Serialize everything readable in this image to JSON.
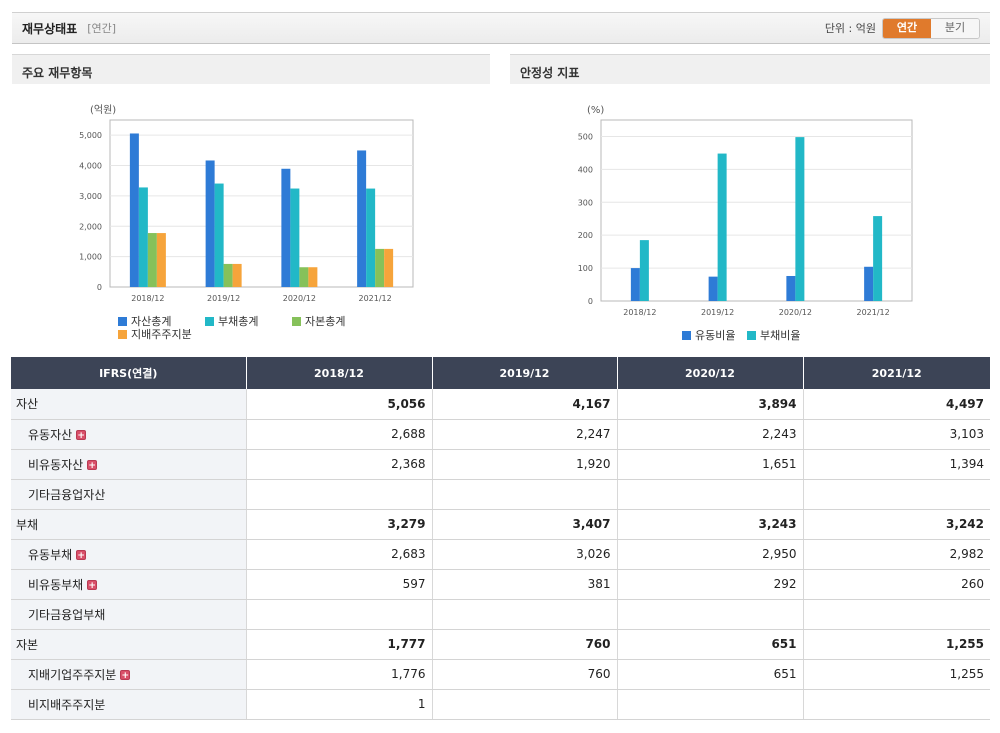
{
  "header": {
    "title": "재무상태표",
    "subtitle": "[연간]",
    "unit_label": "단위 : 억원",
    "toggle_annual": "연간",
    "toggle_quarter": "분기"
  },
  "colors": {
    "blue": "#2e7bd6",
    "cyan": "#22b8c7",
    "green": "#86c15a",
    "orange": "#f6a43b"
  },
  "chart_data": [
    {
      "type": "bar",
      "panel_title": "주요 재무항목",
      "unit": "(억원)",
      "categories": [
        "2018/12",
        "2019/12",
        "2020/12",
        "2021/12"
      ],
      "ylim": [
        0,
        5500
      ],
      "yticks": [
        0,
        1000,
        2000,
        3000,
        4000,
        5000
      ],
      "ytick_labels": [
        "0",
        "1,000",
        "2,000",
        "3,000",
        "4,000",
        "5,000"
      ],
      "grid": true,
      "legend_position": "bottom",
      "series": [
        {
          "name": "자산총계",
          "color": "#2e7bd6",
          "values": [
            5056,
            4167,
            3894,
            4497
          ]
        },
        {
          "name": "부채총계",
          "color": "#22b8c7",
          "values": [
            3279,
            3407,
            3243,
            3242
          ]
        },
        {
          "name": "자본총계",
          "color": "#86c15a",
          "values": [
            1777,
            760,
            651,
            1255
          ]
        },
        {
          "name": "지배주주지분",
          "color": "#f6a43b",
          "values": [
            1776,
            760,
            651,
            1255
          ]
        }
      ]
    },
    {
      "type": "bar",
      "panel_title": "안정성 지표",
      "unit": "(%)",
      "categories": [
        "2018/12",
        "2019/12",
        "2020/12",
        "2021/12"
      ],
      "ylim": [
        0,
        550
      ],
      "yticks": [
        0,
        100,
        200,
        300,
        400,
        500
      ],
      "ytick_labels": [
        "0",
        "100",
        "200",
        "300",
        "400",
        "500"
      ],
      "grid": true,
      "legend_position": "bottom",
      "series": [
        {
          "name": "유동비율",
          "color": "#2e7bd6",
          "values": [
            100,
            74,
            76,
            104
          ]
        },
        {
          "name": "부채비율",
          "color": "#22b8c7",
          "values": [
            185,
            448,
            498,
            258
          ]
        }
      ]
    }
  ],
  "table": {
    "header_label": "IFRS(연결)",
    "columns": [
      "2018/12",
      "2019/12",
      "2020/12",
      "2021/12"
    ],
    "rows": [
      {
        "label": "자산",
        "level": "main",
        "expandable": false,
        "values": [
          "5,056",
          "4,167",
          "3,894",
          "4,497"
        ]
      },
      {
        "label": "유동자산",
        "level": "sub",
        "expandable": true,
        "values": [
          "2,688",
          "2,247",
          "2,243",
          "3,103"
        ]
      },
      {
        "label": "비유동자산",
        "level": "sub",
        "expandable": true,
        "values": [
          "2,368",
          "1,920",
          "1,651",
          "1,394"
        ]
      },
      {
        "label": "기타금융업자산",
        "level": "sub",
        "expandable": false,
        "values": [
          "",
          "",
          "",
          ""
        ]
      },
      {
        "label": "부채",
        "level": "main",
        "expandable": false,
        "values": [
          "3,279",
          "3,407",
          "3,243",
          "3,242"
        ]
      },
      {
        "label": "유동부채",
        "level": "sub",
        "expandable": true,
        "values": [
          "2,683",
          "3,026",
          "2,950",
          "2,982"
        ]
      },
      {
        "label": "비유동부채",
        "level": "sub",
        "expandable": true,
        "values": [
          "597",
          "381",
          "292",
          "260"
        ]
      },
      {
        "label": "기타금융업부채",
        "level": "sub",
        "expandable": false,
        "values": [
          "",
          "",
          "",
          ""
        ]
      },
      {
        "label": "자본",
        "level": "main",
        "expandable": false,
        "values": [
          "1,777",
          "760",
          "651",
          "1,255"
        ]
      },
      {
        "label": "지배기업주주지분",
        "level": "sub",
        "expandable": true,
        "values": [
          "1,776",
          "760",
          "651",
          "1,255"
        ]
      },
      {
        "label": "비지배주주지분",
        "level": "sub",
        "expandable": false,
        "values": [
          "1",
          "",
          "",
          ""
        ]
      }
    ],
    "expand_icon": "+"
  }
}
